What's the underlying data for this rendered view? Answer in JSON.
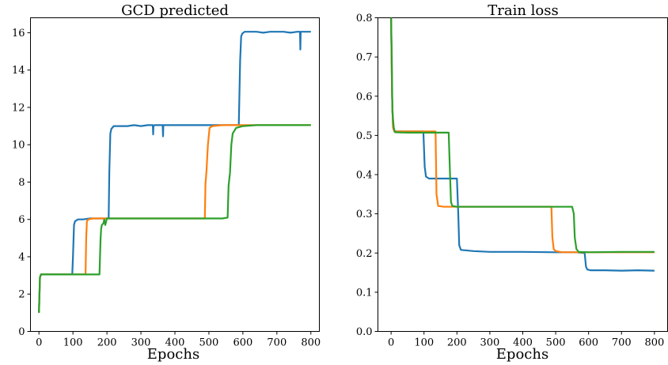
{
  "chart_data": [
    {
      "type": "line",
      "title": "GCD predicted",
      "xlabel": "Epochs",
      "ylabel": "",
      "xlim": [
        -25,
        825
      ],
      "ylim": [
        0,
        16.8
      ],
      "xticks": [
        0,
        100,
        200,
        300,
        400,
        500,
        600,
        700,
        800
      ],
      "yticks": [
        0,
        2,
        4,
        6,
        8,
        10,
        12,
        14,
        16
      ],
      "xtick_labels": [
        "0",
        "100",
        "200",
        "300",
        "400",
        "500",
        "600",
        "700",
        "800"
      ],
      "ytick_labels": [
        "0",
        "2",
        "4",
        "6",
        "8",
        "10",
        "12",
        "14",
        "16"
      ],
      "grid": false,
      "series": [
        {
          "color": "#1f77b4",
          "x": [
            0,
            3,
            6,
            20,
            40,
            60,
            80,
            98,
            100,
            103,
            106,
            115,
            130,
            150,
            170,
            190,
            205,
            207,
            210,
            213,
            220,
            240,
            260,
            280,
            300,
            320,
            335,
            336,
            337,
            340,
            360,
            364,
            365,
            366,
            380,
            400,
            420,
            440,
            460,
            480,
            500,
            520,
            540,
            560,
            580,
            588,
            592,
            595,
            598,
            605,
            620,
            640,
            660,
            680,
            700,
            720,
            740,
            760,
            768,
            769,
            770,
            780,
            800
          ],
          "y": [
            1.0,
            2.9,
            3.05,
            3.05,
            3.05,
            3.05,
            3.05,
            3.05,
            4.0,
            5.7,
            5.9,
            6.0,
            6.0,
            6.05,
            6.05,
            6.05,
            6.05,
            8.5,
            10.6,
            10.85,
            11.0,
            11.0,
            11.0,
            11.05,
            11.0,
            11.05,
            11.05,
            10.55,
            11.0,
            11.05,
            11.05,
            11.05,
            10.45,
            11.05,
            11.05,
            11.05,
            11.05,
            11.05,
            11.05,
            11.05,
            11.05,
            11.05,
            11.05,
            11.05,
            11.05,
            11.05,
            14.5,
            15.8,
            15.95,
            16.05,
            16.05,
            16.05,
            16.0,
            16.05,
            16.05,
            16.05,
            16.0,
            16.05,
            16.05,
            15.1,
            16.05,
            16.05,
            16.05
          ]
        },
        {
          "color": "#ff7f0e",
          "x": [
            0,
            3,
            6,
            40,
            80,
            120,
            137,
            139,
            141,
            145,
            160,
            200,
            250,
            300,
            350,
            400,
            450,
            488,
            490,
            493,
            497,
            502,
            510,
            540,
            580,
            620,
            680,
            740,
            800
          ],
          "y": [
            1.0,
            2.9,
            3.05,
            3.05,
            3.05,
            3.05,
            3.05,
            5.0,
            5.9,
            6.0,
            6.05,
            6.05,
            6.05,
            6.05,
            6.05,
            6.05,
            6.05,
            6.05,
            7.9,
            8.6,
            10.0,
            10.9,
            11.0,
            11.05,
            11.05,
            11.05,
            11.05,
            11.05,
            11.05
          ]
        },
        {
          "color": "#2ca02c",
          "x": [
            0,
            3,
            6,
            40,
            80,
            120,
            160,
            178,
            181,
            183,
            185,
            190,
            192,
            195,
            200,
            240,
            300,
            360,
            420,
            480,
            540,
            555,
            558,
            562,
            566,
            570,
            580,
            600,
            640,
            700,
            760,
            800
          ],
          "y": [
            1.0,
            2.9,
            3.05,
            3.05,
            3.05,
            3.05,
            3.05,
            3.05,
            4.9,
            5.5,
            5.7,
            5.8,
            6.0,
            5.7,
            6.05,
            6.05,
            6.05,
            6.05,
            6.05,
            6.05,
            6.05,
            6.1,
            7.8,
            8.5,
            10.0,
            10.6,
            10.9,
            11.0,
            11.05,
            11.05,
            11.05,
            11.05
          ]
        }
      ]
    },
    {
      "type": "line",
      "title": "Train loss",
      "xlabel": "Epochs",
      "ylabel": "",
      "xlim": [
        -40,
        840
      ],
      "ylim": [
        0,
        0.8
      ],
      "xticks": [
        0,
        100,
        200,
        300,
        400,
        500,
        600,
        700,
        800
      ],
      "yticks": [
        0.0,
        0.1,
        0.2,
        0.3,
        0.4,
        0.5,
        0.6,
        0.7,
        0.8
      ],
      "xtick_labels": [
        "0",
        "100",
        "200",
        "300",
        "400",
        "500",
        "600",
        "700",
        "800"
      ],
      "ytick_labels": [
        "0.0",
        "0.1",
        "0.2",
        "0.3",
        "0.4",
        "0.5",
        "0.6",
        "0.7",
        "0.8"
      ],
      "grid": false,
      "series": [
        {
          "color": "#1f77b4",
          "x": [
            0,
            3,
            6,
            10,
            40,
            70,
            98,
            102,
            106,
            115,
            150,
            180,
            200,
            204,
            207,
            212,
            250,
            300,
            400,
            500,
            560,
            588,
            592,
            596,
            605,
            650,
            700,
            750,
            800
          ],
          "y": [
            0.8,
            0.6,
            0.52,
            0.51,
            0.51,
            0.51,
            0.51,
            0.42,
            0.395,
            0.39,
            0.39,
            0.39,
            0.39,
            0.3,
            0.22,
            0.208,
            0.205,
            0.203,
            0.203,
            0.202,
            0.202,
            0.2,
            0.165,
            0.158,
            0.156,
            0.156,
            0.155,
            0.156,
            0.155
          ]
        },
        {
          "color": "#ff7f0e",
          "x": [
            0,
            3,
            6,
            10,
            50,
            100,
            130,
            135,
            138,
            143,
            160,
            200,
            300,
            400,
            480,
            487,
            490,
            494,
            500,
            520,
            560,
            600,
            700,
            800
          ],
          "y": [
            0.8,
            0.6,
            0.52,
            0.51,
            0.51,
            0.51,
            0.51,
            0.51,
            0.35,
            0.32,
            0.318,
            0.318,
            0.318,
            0.318,
            0.318,
            0.318,
            0.24,
            0.21,
            0.205,
            0.202,
            0.202,
            0.202,
            0.202,
            0.202
          ]
        },
        {
          "color": "#2ca02c",
          "x": [
            0,
            2,
            4,
            8,
            12,
            50,
            100,
            150,
            175,
            179,
            182,
            186,
            200,
            300,
            400,
            500,
            550,
            555,
            558,
            563,
            570,
            600,
            700,
            800
          ],
          "y": [
            0.8,
            0.7,
            0.56,
            0.52,
            0.508,
            0.507,
            0.507,
            0.507,
            0.507,
            0.4,
            0.33,
            0.32,
            0.318,
            0.318,
            0.318,
            0.318,
            0.318,
            0.3,
            0.24,
            0.21,
            0.203,
            0.202,
            0.203,
            0.203
          ]
        }
      ]
    }
  ]
}
